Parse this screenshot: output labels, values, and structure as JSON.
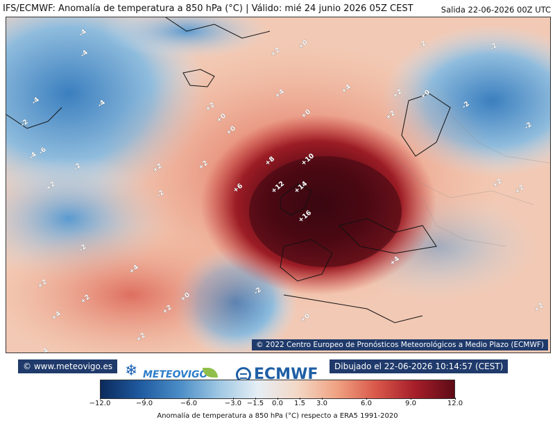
{
  "title": {
    "main": "IFS/ECMWF: Anomalía de temperatura a 850 hPa (°C) | Válido: mié 24 junio 2026 05Z CEST",
    "run": "Salida 22-06-2026 00Z UTC"
  },
  "map": {
    "credit": "© 2022 Centro Europeo de Pronósticos Meteorológicos a Medio Plazo (ECMWF)",
    "contour_labels": [
      "-6",
      "-4",
      "-4",
      "-4",
      "-4",
      "-4",
      "-2",
      "-2",
      "-2",
      "-2",
      "-2",
      "-2",
      "-2",
      "-2",
      "+2",
      "+2",
      "+2",
      "+2",
      "+2",
      "+2",
      "+2",
      "+0",
      "+0",
      "+0",
      "+0",
      "+0",
      "+0",
      "+4",
      "+4",
      "+4",
      "+4",
      "+4",
      "+2",
      "+2",
      "+2",
      "+6",
      "+8",
      "+10",
      "+12",
      "+14",
      "+16",
      "+2",
      "+2",
      "-2",
      "+2",
      "+0",
      "+4",
      "+2"
    ]
  },
  "footer": {
    "website": "© www.meteovigo.es",
    "drawn": "Dibujado el 22-06-2026 10:14:57 (CEST)",
    "brand_meteovigo": "METEOVIGO",
    "brand_ecmwf": "ECMWF"
  },
  "colorbar": {
    "ticks": [
      "−12.0",
      "−9.0",
      "−6.0",
      "−3.0",
      "−1.5",
      "0.0",
      "1.5",
      "3.0",
      "6.0",
      "9.0",
      "12.0"
    ],
    "tick_values": [
      -12,
      -9,
      -6,
      -3,
      -1.5,
      0,
      1.5,
      3,
      6,
      9,
      12
    ],
    "range": [
      -12,
      12
    ],
    "label": "Anomalía de temperatura a 850 hPa (°C) respecto a ERA5 1991-2020",
    "colors": [
      "#0b2a5c",
      "#1f5aa0",
      "#4a8cc6",
      "#9ec7e3",
      "#e6eef5",
      "#f3d8c6",
      "#f0a383",
      "#d9584a",
      "#a51e2a",
      "#5e0b16"
    ]
  }
}
